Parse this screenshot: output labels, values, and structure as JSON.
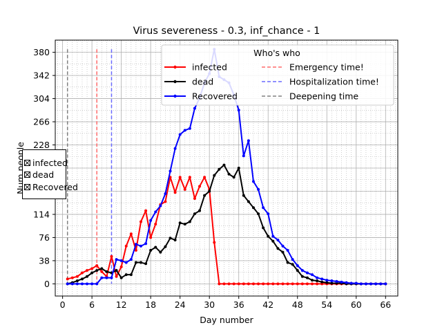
{
  "chart_data": {
    "type": "line",
    "title": "Virus severeness - 0.3, inf_chance - 1",
    "xlabel": "Day number",
    "ylabel": "Num people",
    "xlim": [
      -1.5,
      68.5
    ],
    "ylim": [
      -20,
      400
    ],
    "xticks": [
      0,
      6,
      12,
      18,
      24,
      30,
      36,
      42,
      48,
      54,
      60,
      66
    ],
    "yticks": [
      0,
      38,
      76,
      114,
      152,
      190,
      228,
      266,
      304,
      342,
      380
    ],
    "ytick_labels": [
      "0",
      "38",
      "76",
      "114",
      "",
      "",
      "228",
      "266",
      "304",
      "342",
      "380"
    ],
    "grid": true,
    "legend": {
      "title": "Who's who",
      "placement": "top-right",
      "columns": 2
    },
    "series": [
      {
        "name": "infected",
        "color": "#ff0000",
        "x": [
          1,
          2,
          3,
          4,
          5,
          6,
          7,
          8,
          9,
          10,
          11,
          12,
          13,
          14,
          15,
          16,
          17,
          18,
          19,
          20,
          21,
          22,
          23,
          24,
          25,
          26,
          27,
          28,
          29,
          30,
          31,
          32,
          33,
          34,
          35,
          36,
          37,
          38,
          39,
          40,
          41,
          42,
          43,
          44,
          45,
          46,
          47,
          48,
          49,
          50,
          51,
          52,
          53,
          54,
          55,
          56,
          57,
          58,
          59,
          60,
          61,
          62,
          63,
          64,
          65,
          66
        ],
        "y": [
          8,
          10,
          12,
          18,
          22,
          25,
          30,
          20,
          12,
          45,
          12,
          28,
          62,
          82,
          55,
          102,
          120,
          76,
          98,
          130,
          135,
          175,
          150,
          175,
          155,
          175,
          140,
          160,
          175,
          155,
          68,
          0,
          0,
          0,
          0,
          0,
          0,
          0,
          0,
          0,
          0,
          0,
          0,
          0,
          0,
          0,
          0,
          0,
          0,
          0,
          0,
          0,
          0,
          0,
          0,
          0,
          0,
          0,
          0,
          0,
          0,
          0,
          0,
          0,
          0,
          0
        ]
      },
      {
        "name": "dead",
        "color": "#000000",
        "x": [
          1,
          2,
          3,
          4,
          5,
          6,
          7,
          8,
          9,
          10,
          11,
          12,
          13,
          14,
          15,
          16,
          17,
          18,
          19,
          20,
          21,
          22,
          23,
          24,
          25,
          26,
          27,
          28,
          29,
          30,
          31,
          32,
          33,
          34,
          35,
          36,
          37,
          38,
          39,
          40,
          41,
          42,
          43,
          44,
          45,
          46,
          47,
          48,
          49,
          50,
          51,
          52,
          53,
          54,
          55,
          56,
          57,
          58,
          59,
          60,
          61,
          62,
          63,
          64,
          65,
          66
        ],
        "y": [
          0,
          2,
          5,
          8,
          12,
          18,
          22,
          25,
          20,
          18,
          22,
          10,
          15,
          15,
          35,
          35,
          33,
          55,
          60,
          52,
          61,
          75,
          72,
          100,
          98,
          102,
          115,
          120,
          145,
          152,
          178,
          188,
          195,
          180,
          175,
          190,
          145,
          135,
          125,
          115,
          92,
          78,
          70,
          58,
          52,
          35,
          32,
          22,
          12,
          10,
          6,
          5,
          3,
          2,
          1,
          1,
          1,
          0,
          0,
          0,
          0,
          0,
          0,
          0,
          0,
          0
        ]
      },
      {
        "name": "Recovered",
        "color": "#0000ff",
        "x": [
          1,
          2,
          3,
          4,
          5,
          6,
          7,
          8,
          9,
          10,
          11,
          12,
          13,
          14,
          15,
          16,
          17,
          18,
          19,
          20,
          21,
          22,
          23,
          24,
          25,
          26,
          27,
          28,
          29,
          30,
          31,
          32,
          33,
          34,
          35,
          36,
          37,
          38,
          39,
          40,
          41,
          42,
          43,
          44,
          45,
          46,
          47,
          48,
          49,
          50,
          51,
          52,
          53,
          54,
          55,
          56,
          57,
          58,
          59,
          60,
          61,
          62,
          63,
          64,
          65,
          66
        ],
        "y": [
          0,
          0,
          0,
          0,
          0,
          0,
          0,
          10,
          10,
          10,
          40,
          38,
          35,
          40,
          65,
          62,
          66,
          104,
          118,
          128,
          148,
          185,
          222,
          245,
          252,
          255,
          288,
          305,
          330,
          345,
          385,
          340,
          335,
          330,
          310,
          285,
          210,
          235,
          168,
          155,
          125,
          115,
          78,
          72,
          62,
          55,
          40,
          30,
          22,
          18,
          15,
          10,
          8,
          6,
          5,
          4,
          3,
          2,
          1,
          1,
          0,
          0,
          0,
          0,
          0,
          0
        ]
      }
    ],
    "vlines": [
      {
        "name": "Emergency time!",
        "x": 7,
        "color": "#ff6a6a",
        "style": "dashed"
      },
      {
        "name": "Hospitalization time!",
        "x": 10,
        "color": "#6a6aff",
        "style": "dashed"
      },
      {
        "name": "Deepening time",
        "x": 1,
        "color": "#808080",
        "style": "dashed"
      }
    ]
  },
  "check_panel": {
    "items": [
      {
        "label": "infected",
        "checked": true
      },
      {
        "label": "dead",
        "checked": true
      },
      {
        "label": "Recovered",
        "checked": true
      }
    ]
  }
}
